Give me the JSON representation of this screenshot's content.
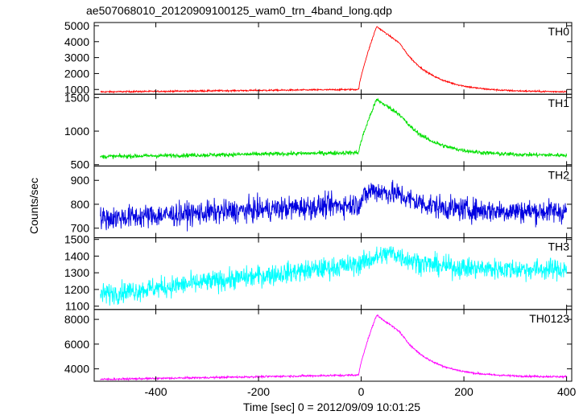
{
  "chart_data": {
    "type": "line",
    "title": "ae507068010_20120909100125_wam0_trn_4band_long.qdp",
    "xlabel": "Time [sec] 0 = 2012/09/09 10:01:25",
    "ylabel": "Counts/sec",
    "xlim": [
      -520,
      410
    ],
    "xticks": [
      -400,
      -200,
      0,
      200,
      400
    ],
    "grid": false,
    "panels": [
      {
        "name": "TH0",
        "color": "#ff0000",
        "ylim": [
          700,
          5200
        ],
        "yticks": [
          1000,
          2000,
          3000,
          4000,
          5000
        ],
        "shape": {
          "pre_start": 850,
          "pre_end": 1000,
          "peak": 4950,
          "peak_time": 30,
          "tail": 3900,
          "end": 850
        },
        "noise": 35
      },
      {
        "name": "TH1",
        "color": "#00e000",
        "ylim": [
          480,
          1550
        ],
        "yticks": [
          500,
          1000,
          1500
        ],
        "shape": {
          "pre_start": 620,
          "pre_end": 680,
          "peak": 1470,
          "peak_time": 30,
          "tail": 1250,
          "end": 640
        },
        "noise": 22
      },
      {
        "name": "TH2",
        "color": "#0000e0",
        "ylim": [
          660,
          960
        ],
        "yticks": [
          700,
          800,
          900
        ],
        "shape": {
          "pre_start": 740,
          "pre_end": 800,
          "peak": 860,
          "peak_time": 20,
          "tail": 840,
          "end": 770
        },
        "noise": 35
      },
      {
        "name": "TH3",
        "color": "#00ffff",
        "ylim": [
          1080,
          1510
        ],
        "yticks": [
          1100,
          1200,
          1300,
          1400,
          1500
        ],
        "shape": {
          "pre_start": 1170,
          "pre_end": 1350,
          "peak": 1420,
          "peak_time": 60,
          "tail": 1400,
          "end": 1320
        },
        "noise": 45
      },
      {
        "name": "TH0123",
        "color": "#ff00ff",
        "ylim": [
          3000,
          8800
        ],
        "yticks": [
          4000,
          6000,
          8000
        ],
        "shape": {
          "pre_start": 3150,
          "pre_end": 3500,
          "peak": 8350,
          "peak_time": 30,
          "tail": 7000,
          "end": 3350
        },
        "noise": 55
      }
    ]
  }
}
